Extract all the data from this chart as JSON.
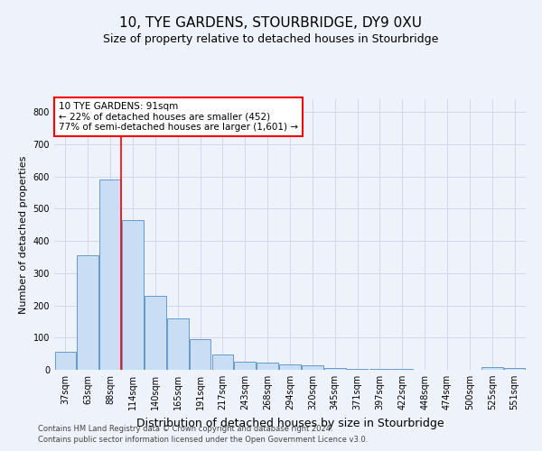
{
  "title": "10, TYE GARDENS, STOURBRIDGE, DY9 0XU",
  "subtitle": "Size of property relative to detached houses in Stourbridge",
  "xlabel": "Distribution of detached houses by size in Stourbridge",
  "ylabel": "Number of detached properties",
  "categories": [
    "37sqm",
    "63sqm",
    "88sqm",
    "114sqm",
    "140sqm",
    "165sqm",
    "191sqm",
    "217sqm",
    "243sqm",
    "268sqm",
    "294sqm",
    "320sqm",
    "345sqm",
    "371sqm",
    "397sqm",
    "422sqm",
    "448sqm",
    "474sqm",
    "500sqm",
    "525sqm",
    "551sqm"
  ],
  "values": [
    55,
    355,
    590,
    465,
    230,
    160,
    95,
    47,
    25,
    22,
    18,
    13,
    7,
    4,
    4,
    3,
    1,
    0,
    0,
    8,
    5
  ],
  "bar_color": "#c9ddf5",
  "bar_edge_color": "#6699cc",
  "annotation_text": "10 TYE GARDENS: 91sqm\n← 22% of detached houses are smaller (452)\n77% of semi-detached houses are larger (1,601) →",
  "annotation_box_color": "white",
  "annotation_box_edge_color": "red",
  "property_line_color": "red",
  "property_line_x": 2.48,
  "ylim": [
    0,
    840
  ],
  "yticks": [
    0,
    100,
    200,
    300,
    400,
    500,
    600,
    700,
    800
  ],
  "grid_color": "#d0d8ea",
  "footer_line1": "Contains HM Land Registry data © Crown copyright and database right 2024.",
  "footer_line2": "Contains public sector information licensed under the Open Government Licence v3.0.",
  "title_fontsize": 11,
  "subtitle_fontsize": 9,
  "axis_label_fontsize": 8,
  "tick_fontsize": 7,
  "background_color": "#eef2fa",
  "plot_bg_color": "#eef2fa"
}
